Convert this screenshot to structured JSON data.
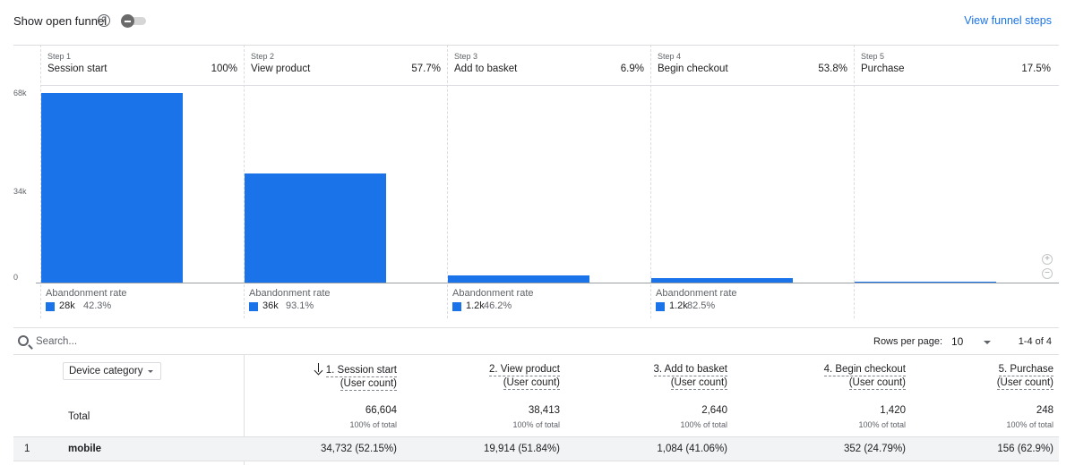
{
  "topbar": {
    "toggle_label": "Show open funnel",
    "help_icon": "help-circle-icon",
    "view_steps": "View funnel steps"
  },
  "chart_data": {
    "type": "bar",
    "categories": [
      "Session start",
      "View product",
      "Add to basket",
      "Begin checkout",
      "Purchase"
    ],
    "values": [
      66604,
      38413,
      2640,
      1420,
      248
    ],
    "step_numbers": [
      "Step 1",
      "Step 2",
      "Step 3",
      "Step 4",
      "Step 5"
    ],
    "completion_rates": [
      "100%",
      "57.7%",
      "6.9%",
      "53.8%",
      "17.5%"
    ],
    "yticks": [
      "68k",
      "34k",
      "0"
    ],
    "ylim": [
      0,
      68000
    ],
    "abandonment_label": "Abandonment rate",
    "abandonment": [
      {
        "count": "28k",
        "rate": "42.3%"
      },
      {
        "count": "36k",
        "rate": "93.1%"
      },
      {
        "count": "1.2k",
        "rate": "46.2%"
      },
      {
        "count": "1.2k",
        "rate": "82.5%"
      }
    ],
    "bar_color": "#1a73e8"
  },
  "zoom": {
    "in_icon": "zoom-in-icon",
    "out_icon": "zoom-out-icon"
  },
  "search": {
    "icon": "search-icon",
    "placeholder": "Search...",
    "rows_label": "Rows per page:",
    "rows_value": "10",
    "page_info": "1-4 of 4"
  },
  "table": {
    "dimension": "Device category",
    "columns": [
      {
        "title": "1. Session start",
        "sub": "(User count)",
        "total": "66,604",
        "share": "100% of total",
        "row1": "34,732 (52.15%)"
      },
      {
        "title": "2. View product",
        "sub": "(User count)",
        "total": "38,413",
        "share": "100% of total",
        "row1": "19,914 (51.84%)"
      },
      {
        "title": "3. Add to basket",
        "sub": "(User count)",
        "total": "2,640",
        "share": "100% of total",
        "row1": "1,084 (41.06%)"
      },
      {
        "title": "4. Begin checkout",
        "sub": "(User count)",
        "total": "1,420",
        "share": "100% of total",
        "row1": "352 (24.79%)"
      },
      {
        "title": "5. Purchase",
        "sub": "(User count)",
        "total": "248",
        "share": "100% of total",
        "row1": "156 (62.9%)"
      }
    ],
    "total_label": "Total",
    "rows": [
      {
        "index": "1",
        "dimension": "mobile"
      }
    ]
  }
}
